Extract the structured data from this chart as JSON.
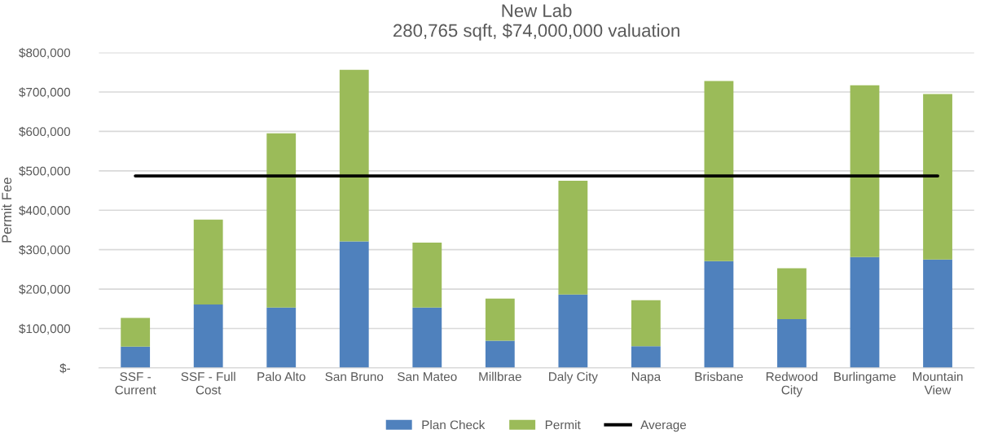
{
  "chart_data": {
    "type": "bar",
    "title": "New Lab\n280,765 sqft, $74,000,000 valuation",
    "ylabel": "Permit Fee",
    "stacked": true,
    "categories": [
      "SSF -\nCurrent",
      "SSF - Full\nCost",
      "Palo Alto",
      "San Bruno",
      "San Mateo",
      "Millbrae",
      "Daly City",
      "Napa",
      "Brisbane",
      "Redwood\nCity",
      "Burlingame",
      "Mountain\nView"
    ],
    "series": [
      {
        "name": "Plan Check",
        "color": "#4f81bd",
        "values": [
          54000,
          161000,
          153000,
          321000,
          153000,
          69000,
          186000,
          55000,
          271000,
          124000,
          281000,
          275000
        ]
      },
      {
        "name": "Permit",
        "color": "#9bbb59",
        "values": [
          73000,
          215000,
          442000,
          435000,
          165000,
          107000,
          289000,
          117000,
          457000,
          129000,
          436000,
          420000
        ]
      },
      {
        "name": "Average",
        "type": "line",
        "color": "#000000",
        "values": [
          487000,
          487000,
          487000,
          487000,
          487000,
          487000,
          487000,
          487000,
          487000,
          487000,
          487000,
          487000
        ]
      }
    ],
    "ylim": [
      0,
      800000
    ],
    "yticks": [
      {
        "value": 0,
        "label": "$-"
      },
      {
        "value": 100000,
        "label": "$100,000"
      },
      {
        "value": 200000,
        "label": "$200,000"
      },
      {
        "value": 300000,
        "label": "$300,000"
      },
      {
        "value": 400000,
        "label": "$400,000"
      },
      {
        "value": 500000,
        "label": "$500,000"
      },
      {
        "value": 600000,
        "label": "$600,000"
      },
      {
        "value": 700000,
        "label": "$700,000"
      },
      {
        "value": 800000,
        "label": "$800,000"
      }
    ],
    "grid": "y",
    "legend": "bottom"
  }
}
